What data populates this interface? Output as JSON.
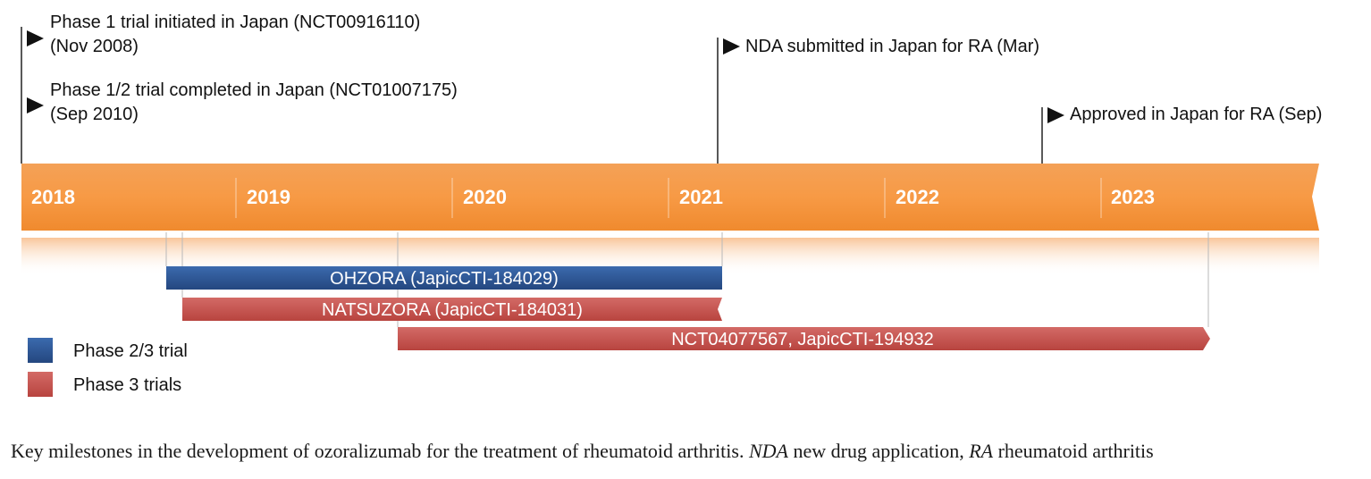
{
  "timeline": {
    "years": [
      "2018",
      "2019",
      "2020",
      "2021",
      "2022",
      "2023"
    ],
    "milestones": [
      {
        "lines": [
          "Phase 1 trial initiated in Japan (NCT00916110)",
          "(Nov 2008)"
        ]
      },
      {
        "lines": [
          "Phase 1/2 trial completed in Japan (NCT01007175)",
          "(Sep 2010)"
        ]
      },
      {
        "lines": [
          "NDA submitted in Japan for RA (Mar)"
        ]
      },
      {
        "lines": [
          "Approved in Japan for RA (Sep)"
        ]
      }
    ],
    "trials": [
      {
        "label": "OHZORA (JapicCTI-184029)",
        "phase": "phase23"
      },
      {
        "label": "NATSUZORA (JapicCTI-184031)",
        "phase": "phase3"
      },
      {
        "label": "NCT04077567, JapicCTI-194932",
        "phase": "phase3"
      }
    ]
  },
  "legend": [
    {
      "key": "phase23",
      "label": "Phase 2/3 trial",
      "color": "#2f5597"
    },
    {
      "key": "phase3",
      "label": "Phase 3 trials",
      "color": "#c0504d"
    }
  ],
  "colors": {
    "timeline_bar": "#f79646",
    "phase23": "#2f5597",
    "phase3": "#c0504d"
  },
  "caption": {
    "part1": "Key milestones in the development of ozoralizumab for the treatment of rheumatoid arthritis. ",
    "abbr1": "NDA",
    "part2": " new drug application, ",
    "abbr2": "RA",
    "part3": " rheumatoid arthritis"
  }
}
